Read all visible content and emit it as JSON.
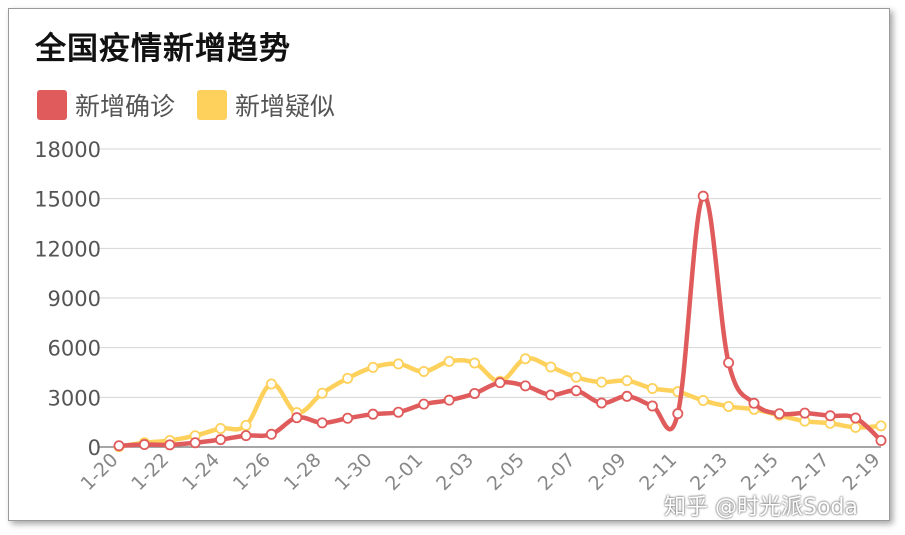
{
  "chart_data": {
    "type": "line",
    "title": "全国疫情新增趋势",
    "categories": [
      "1-20",
      "1-21",
      "1-22",
      "1-23",
      "1-24",
      "1-25",
      "1-26",
      "1-27",
      "1-28",
      "1-29",
      "1-30",
      "1-31",
      "2-01",
      "2-02",
      "2-03",
      "2-04",
      "2-05",
      "2-06",
      "2-07",
      "2-08",
      "2-09",
      "2-10",
      "2-11",
      "2-12",
      "2-13",
      "2-14",
      "2-15",
      "2-16",
      "2-17",
      "2-18",
      "2-19"
    ],
    "tick_labels": [
      "1-20",
      "1-22",
      "1-24",
      "1-26",
      "1-28",
      "1-30",
      "2-01",
      "2-03",
      "2-05",
      "2-07",
      "2-09",
      "2-11",
      "2-13",
      "2-15",
      "2-17",
      "2-19"
    ],
    "series": [
      {
        "name": "新增确诊",
        "color": "#e05c5c",
        "values": [
          77,
          149,
          131,
          259,
          444,
          688,
          769,
          1771,
          1459,
          1737,
          1982,
          2102,
          2590,
          2829,
          3235,
          3887,
          3694,
          3143,
          3399,
          2656,
          3062,
          2478,
          2015,
          15152,
          5090,
          2641,
          2009,
          2048,
          1886,
          1749,
          394
        ]
      },
      {
        "name": "新增疑似",
        "color": "#fdd15c",
        "values": [
          27,
          257,
          393,
          680,
          1118,
          1309,
          3806,
          2077,
          3248,
          4148,
          4812,
          5019,
          4562,
          5173,
          5072,
          3971,
          5328,
          4833,
          4214,
          3916,
          4008,
          3536,
          3342,
          2807,
          2450,
          2277,
          1918,
          1563,
          1432,
          1185,
          1277
        ]
      }
    ],
    "ylim": [
      0,
      18000
    ],
    "yticks": [
      "0",
      "3000",
      "6000",
      "9000",
      "12000",
      "15000",
      "18000"
    ],
    "legend_position": "top-left",
    "grid": true
  },
  "watermark": "知乎 @时光派Soda"
}
